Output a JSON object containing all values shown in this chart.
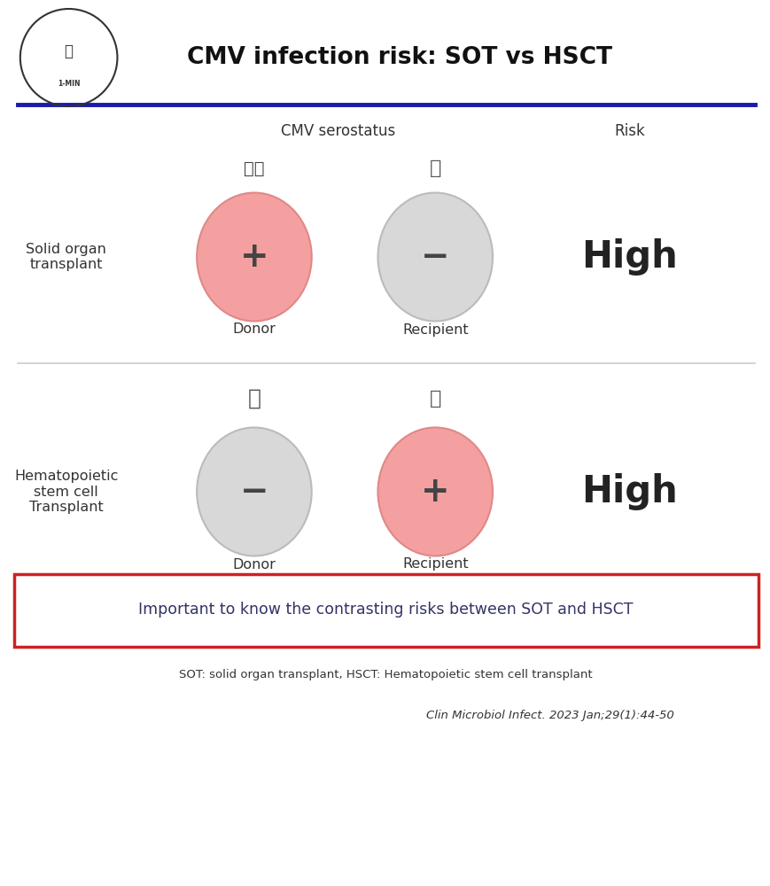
{
  "title": "CMV infection risk: SOT vs HSCT",
  "bg_color": "#ffffff",
  "header_line_color": "#1a1aaa",
  "header_col1": "CMV serostatus",
  "header_col2": "Risk",
  "sot_label": "Solid organ\ntransplant",
  "hsct_label": "Hematopoietic\nstem cell\nTransplant",
  "donor_label": "Donor",
  "recipient_label": "Recipient",
  "high_label": "High",
  "sot_donor_color": "#f4a0a0",
  "sot_donor_sign": "+",
  "sot_recipient_color": "#d8d8d8",
  "sot_recipient_sign": "−",
  "hsct_donor_color": "#d8d8d8",
  "hsct_donor_sign": "−",
  "hsct_recipient_color": "#f4a0a0",
  "hsct_recipient_sign": "+",
  "box_color": "#cc2222",
  "box_text": "Important to know the contrasting risks between SOT and HSCT",
  "box_text_color": "#333366",
  "footnote1": "SOT: solid organ transplant, HSCT: Hematopoietic stem cell transplant",
  "footnote2": "Clin Microbiol Infect. 2023 Jan;29(1):44-50",
  "divider_color": "#cccccc",
  "sign_color": "#444444",
  "high_color": "#222222"
}
